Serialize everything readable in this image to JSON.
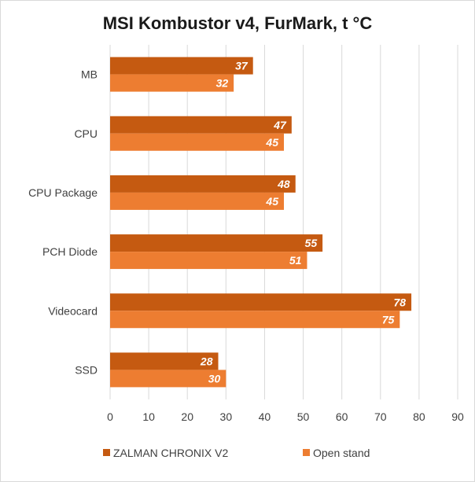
{
  "chart_data": {
    "type": "bar",
    "orientation": "horizontal",
    "title": "MSI Kombustor v4, FurMark, t °C",
    "categories": [
      "MB",
      "CPU",
      "CPU Package",
      "PCH Diode",
      "Videocard",
      "SSD"
    ],
    "series": [
      {
        "name": "ZALMAN CHRONIX V2",
        "color": "#c55a11",
        "values": [
          37,
          47,
          48,
          55,
          78,
          28
        ]
      },
      {
        "name": "Open stand",
        "color": "#ed7d31",
        "values": [
          32,
          45,
          45,
          51,
          75,
          30
        ]
      }
    ],
    "xlim": [
      0,
      90
    ],
    "x_ticks": [
      "0",
      "10",
      "20",
      "30",
      "40",
      "50",
      "60",
      "70",
      "80",
      "90"
    ],
    "grid": true,
    "legend_position": "bottom"
  }
}
